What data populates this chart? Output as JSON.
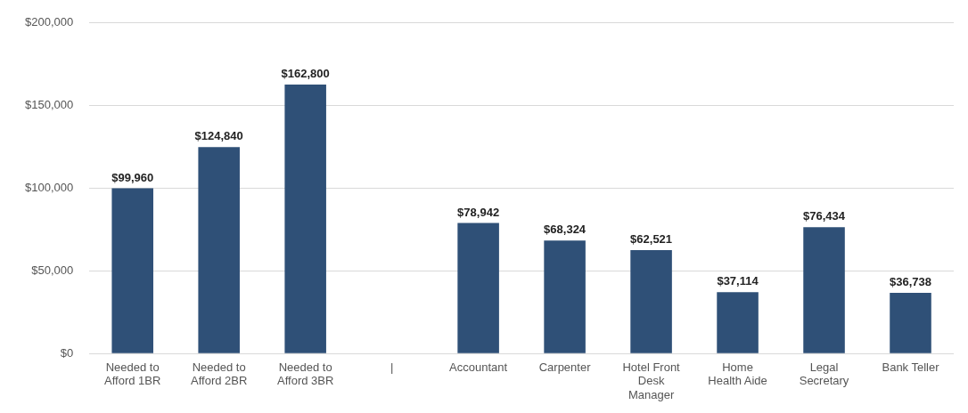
{
  "chart_data": {
    "type": "bar",
    "categories": [
      "Needed to Afford 1BR",
      "Needed to Afford 2BR",
      "Needed to Afford 3BR",
      "|",
      "Accountant",
      "Carpenter",
      "Hotel Front Desk Manager",
      "Home Health Aide",
      "Legal Secretary",
      "Bank Teller"
    ],
    "values": [
      99960,
      124840,
      162800,
      null,
      78942,
      68324,
      62521,
      37114,
      76434,
      36738
    ],
    "value_labels": [
      "$99,960",
      "$124,840",
      "$162,800",
      null,
      "$78,942",
      "$68,324",
      "$62,521",
      "$37,114",
      "$76,434",
      "$36,738"
    ],
    "color": "#2f5077",
    "ylim": [
      0,
      200000
    ],
    "yticks": [
      {
        "value": 0,
        "label": "$0"
      },
      {
        "value": 50000,
        "label": "$50,000"
      },
      {
        "value": 100000,
        "label": "$100,000"
      },
      {
        "value": 150000,
        "label": "$150,000"
      },
      {
        "value": 200000,
        "label": "$200,000"
      }
    ],
    "grid": "y"
  }
}
